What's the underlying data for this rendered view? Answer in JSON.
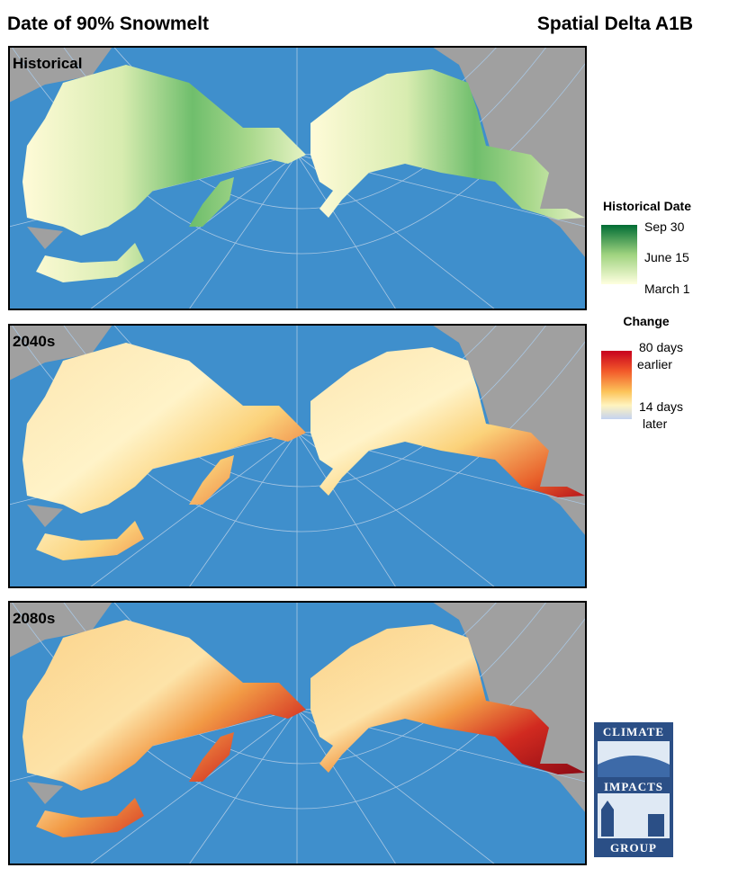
{
  "header": {
    "title": "Date of 90%  Snowmelt",
    "subtitle": "Spatial Delta A1B"
  },
  "panels": [
    {
      "label": "Historical"
    },
    {
      "label": "2040s"
    },
    {
      "label": "2080s"
    }
  ],
  "legends": [
    {
      "title": "Historical Date",
      "labels": [
        "Sep 30",
        "June 15",
        "March 1"
      ]
    },
    {
      "title": "Change",
      "labels": [
        "80 days",
        "earlier",
        "14 days",
        "later"
      ]
    }
  ],
  "logo": {
    "lines": [
      "CLIMATE",
      "IMPACTS",
      "GROUP"
    ]
  }
}
